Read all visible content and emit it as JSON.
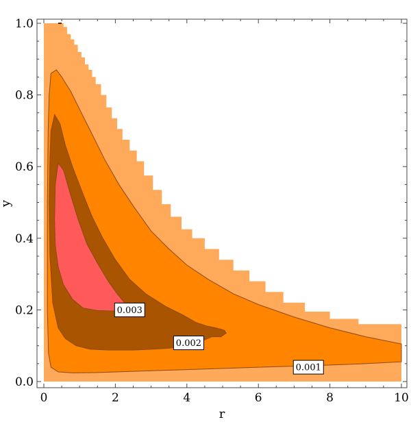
{
  "chart_data": {
    "type": "contour",
    "xlabel": "r",
    "ylabel": "y",
    "xlim": [
      0,
      10
    ],
    "ylim": [
      0,
      1
    ],
    "x_ticks": [
      0,
      2,
      4,
      6,
      8,
      10
    ],
    "y_ticks": [
      0.0,
      0.2,
      0.4,
      0.6,
      0.8,
      1.0
    ],
    "x_tick_labels": [
      "0",
      "2",
      "4",
      "6",
      "8",
      "10"
    ],
    "y_tick_labels": [
      "0.0",
      "0.2",
      "0.4",
      "0.6",
      "0.8",
      "1.0"
    ],
    "frame": true,
    "grid": false,
    "colors": {
      "background_region": "#FFAA5A",
      "level_0_001": "#FF8400",
      "level_0_002": "#A85400",
      "level_0_003": "#FF5A5A",
      "contour_line": "#8C4A14"
    },
    "regions": [
      {
        "level": "background",
        "color_key": "background_region",
        "stairs": true,
        "points": [
          [
            0,
            1
          ],
          [
            0.4,
            1
          ],
          [
            0.55,
            0.99
          ],
          [
            0.65,
            0.97
          ],
          [
            0.75,
            0.955
          ],
          [
            0.85,
            0.94
          ],
          [
            0.95,
            0.92
          ],
          [
            1.05,
            0.905
          ],
          [
            1.15,
            0.885
          ],
          [
            1.25,
            0.87
          ],
          [
            1.35,
            0.85
          ],
          [
            1.45,
            0.83
          ],
          [
            1.6,
            0.8
          ],
          [
            1.75,
            0.765
          ],
          [
            1.9,
            0.735
          ],
          [
            2.05,
            0.705
          ],
          [
            2.2,
            0.675
          ],
          [
            2.4,
            0.645
          ],
          [
            2.6,
            0.615
          ],
          [
            2.8,
            0.575
          ],
          [
            3.05,
            0.535
          ],
          [
            3.3,
            0.495
          ],
          [
            3.55,
            0.46
          ],
          [
            3.85,
            0.425
          ],
          [
            4.15,
            0.4
          ],
          [
            4.5,
            0.37
          ],
          [
            4.9,
            0.34
          ],
          [
            5.3,
            0.31
          ],
          [
            5.75,
            0.28
          ],
          [
            6.2,
            0.25
          ],
          [
            6.7,
            0.22
          ],
          [
            7.3,
            0.195
          ],
          [
            8,
            0.175
          ],
          [
            8.8,
            0.16
          ],
          [
            10,
            0.15
          ],
          [
            10,
            0
          ],
          [
            0,
            0
          ]
        ]
      },
      {
        "level": "0.001",
        "color_key": "level_0_001",
        "outlined": true,
        "points": [
          [
            0.1,
            0.5
          ],
          [
            0.12,
            0.7
          ],
          [
            0.15,
            0.8
          ],
          [
            0.2,
            0.86
          ],
          [
            0.35,
            0.87
          ],
          [
            0.5,
            0.85
          ],
          [
            0.75,
            0.81
          ],
          [
            1.05,
            0.75
          ],
          [
            1.35,
            0.69
          ],
          [
            1.7,
            0.62
          ],
          [
            2.1,
            0.55
          ],
          [
            2.5,
            0.49
          ],
          [
            3,
            0.42
          ],
          [
            3.5,
            0.37
          ],
          [
            4,
            0.325
          ],
          [
            4.6,
            0.285
          ],
          [
            5.3,
            0.245
          ],
          [
            6,
            0.215
          ],
          [
            7,
            0.18
          ],
          [
            8,
            0.15
          ],
          [
            9,
            0.125
          ],
          [
            10,
            0.105
          ],
          [
            10,
            0.055
          ],
          [
            9,
            0.05
          ],
          [
            7.7,
            0.045
          ],
          [
            6,
            0.04
          ],
          [
            4.5,
            0.035
          ],
          [
            3,
            0.03
          ],
          [
            1.5,
            0.025
          ],
          [
            0.8,
            0.024
          ],
          [
            0.4,
            0.027
          ],
          [
            0.2,
            0.04
          ],
          [
            0.13,
            0.08
          ],
          [
            0.1,
            0.2
          ],
          [
            0.1,
            0.5
          ]
        ]
      },
      {
        "level": "0.002",
        "color_key": "level_0_002",
        "outlined": true,
        "points": [
          [
            0.15,
            0.5
          ],
          [
            0.17,
            0.62
          ],
          [
            0.2,
            0.7
          ],
          [
            0.3,
            0.745
          ],
          [
            0.45,
            0.72
          ],
          [
            0.6,
            0.66
          ],
          [
            0.8,
            0.6
          ],
          [
            1.05,
            0.535
          ],
          [
            1.35,
            0.46
          ],
          [
            1.65,
            0.4
          ],
          [
            2,
            0.34
          ],
          [
            2.4,
            0.285
          ],
          [
            2.85,
            0.245
          ],
          [
            3.4,
            0.21
          ],
          [
            3.9,
            0.185
          ],
          [
            4.25,
            0.165
          ],
          [
            4.55,
            0.155
          ],
          [
            4.8,
            0.15
          ],
          [
            5.05,
            0.143
          ],
          [
            5.1,
            0.135
          ],
          [
            4.95,
            0.125
          ],
          [
            4.7,
            0.125
          ],
          [
            4.4,
            0.112
          ],
          [
            4,
            0.1
          ],
          [
            3.5,
            0.093
          ],
          [
            3,
            0.09
          ],
          [
            2.5,
            0.088
          ],
          [
            1.8,
            0.088
          ],
          [
            1.3,
            0.09
          ],
          [
            0.9,
            0.1
          ],
          [
            0.6,
            0.12
          ],
          [
            0.4,
            0.15
          ],
          [
            0.25,
            0.22
          ],
          [
            0.17,
            0.35
          ],
          [
            0.15,
            0.5
          ]
        ]
      },
      {
        "level": "0.003",
        "color_key": "level_0_003",
        "outlined": true,
        "points": [
          [
            0.3,
            0.45
          ],
          [
            0.32,
            0.55
          ],
          [
            0.4,
            0.61
          ],
          [
            0.55,
            0.59
          ],
          [
            0.75,
            0.52
          ],
          [
            0.95,
            0.455
          ],
          [
            1.2,
            0.385
          ],
          [
            1.5,
            0.33
          ],
          [
            1.8,
            0.28
          ],
          [
            2.05,
            0.245
          ],
          [
            2.3,
            0.215
          ],
          [
            2.45,
            0.205
          ],
          [
            2.2,
            0.2
          ],
          [
            1.9,
            0.197
          ],
          [
            1.5,
            0.198
          ],
          [
            1.1,
            0.205
          ],
          [
            0.8,
            0.23
          ],
          [
            0.55,
            0.27
          ],
          [
            0.4,
            0.32
          ],
          [
            0.32,
            0.38
          ],
          [
            0.3,
            0.45
          ]
        ]
      }
    ],
    "corner_line": {
      "from": [
        0.4,
        1.0
      ],
      "to": [
        0.5,
        1.0
      ]
    },
    "contour_labels": [
      {
        "text": "0.003",
        "x": 2.4,
        "y": 0.2
      },
      {
        "text": "0.002",
        "x": 4.05,
        "y": 0.108
      },
      {
        "text": "0.001",
        "x": 7.4,
        "y": 0.04
      }
    ]
  }
}
